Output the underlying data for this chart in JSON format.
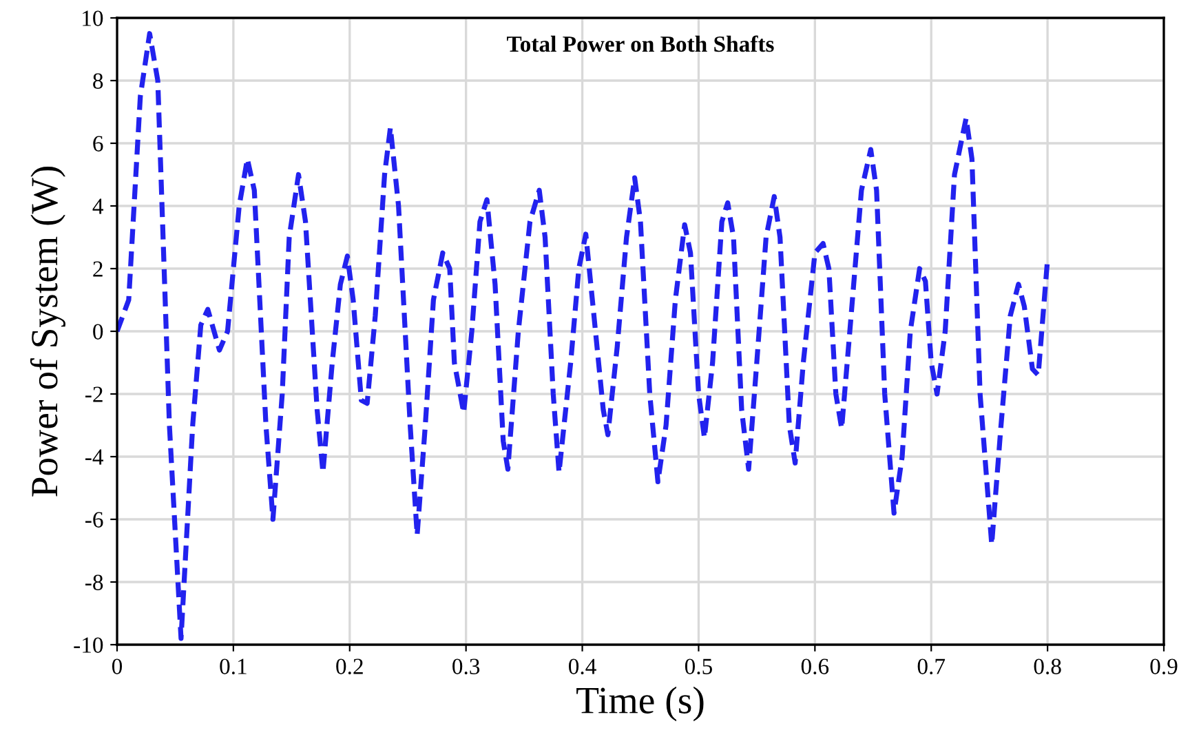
{
  "chart_data": {
    "type": "line",
    "title": "Total Power on Both Shafts",
    "xlabel": "Time (s)",
    "ylabel": "Power of System (W)",
    "x": [
      0,
      0.01,
      0.02,
      0.028,
      0.035,
      0.045,
      0.055,
      0.065,
      0.072,
      0.078,
      0.088,
      0.095,
      0.105,
      0.112,
      0.118,
      0.128,
      0.134,
      0.142,
      0.148,
      0.156,
      0.162,
      0.172,
      0.177,
      0.185,
      0.192,
      0.198,
      0.203,
      0.21,
      0.215,
      0.222,
      0.23,
      0.235,
      0.242,
      0.252,
      0.258,
      0.265,
      0.272,
      0.28,
      0.286,
      0.29,
      0.298,
      0.305,
      0.312,
      0.318,
      0.325,
      0.332,
      0.336,
      0.345,
      0.355,
      0.363,
      0.368,
      0.375,
      0.38,
      0.39,
      0.397,
      0.403,
      0.41,
      0.418,
      0.422,
      0.43,
      0.438,
      0.445,
      0.45,
      0.458,
      0.465,
      0.472,
      0.48,
      0.488,
      0.493,
      0.5,
      0.505,
      0.512,
      0.52,
      0.525,
      0.53,
      0.537,
      0.543,
      0.55,
      0.558,
      0.565,
      0.57,
      0.578,
      0.583,
      0.59,
      0.6,
      0.607,
      0.612,
      0.618,
      0.623,
      0.63,
      0.64,
      0.648,
      0.653,
      0.66,
      0.668,
      0.675,
      0.682,
      0.69,
      0.695,
      0.7,
      0.705,
      0.712,
      0.72,
      0.73,
      0.735,
      0.742,
      0.752,
      0.76,
      0.768,
      0.775,
      0.78,
      0.787,
      0.792,
      0.8
    ],
    "series": [
      {
        "color": "#2222ee",
        "values": [
          0,
          1,
          7.5,
          9.5,
          8,
          -3,
          -9.8,
          -3,
          0.2,
          0.7,
          -0.6,
          0,
          4,
          5.5,
          4.5,
          -3,
          -6,
          -2,
          3,
          5.0,
          3.5,
          -2.5,
          -4.5,
          -1,
          1.5,
          2.4,
          1,
          -2.2,
          -2.3,
          0.5,
          5,
          6.5,
          4,
          -3,
          -6.5,
          -3,
          1,
          2.5,
          2,
          -1,
          -2.6,
          0,
          3.5,
          4.2,
          1.5,
          -3.5,
          -4.4,
          0,
          3.5,
          4.5,
          3,
          -2,
          -4.5,
          -1,
          2,
          3.1,
          0.5,
          -2.5,
          -3.3,
          -0.5,
          3,
          4.9,
          3.5,
          -2,
          -4.8,
          -3,
          1,
          3.4,
          2.5,
          -2,
          -3.4,
          -1,
          3.5,
          4.1,
          3,
          -2.5,
          -4.4,
          -1,
          3,
          4.3,
          3,
          -3,
          -4.2,
          -1,
          2.5,
          2.8,
          2,
          -2,
          -3.1,
          0,
          4.5,
          5.8,
          4.5,
          -2,
          -5.8,
          -4,
          0,
          2,
          1.6,
          -1,
          -2,
          0,
          5,
          6.8,
          5.5,
          -2,
          -6.8,
          -3,
          0.5,
          1.5,
          0.8,
          -1.2,
          -1.4,
          2.3
        ]
      }
    ],
    "xlim": [
      0,
      0.9
    ],
    "xticks": [
      0,
      0.1,
      0.2,
      0.3,
      0.4,
      0.5,
      0.6,
      0.7,
      0.8,
      0.9
    ],
    "ylim": [
      -10,
      10
    ],
    "yticks": [
      -10,
      -8,
      -6,
      -4,
      -2,
      0,
      2,
      4,
      6,
      8,
      10
    ],
    "grid": true,
    "line_style": "dashed",
    "marker": "none"
  }
}
